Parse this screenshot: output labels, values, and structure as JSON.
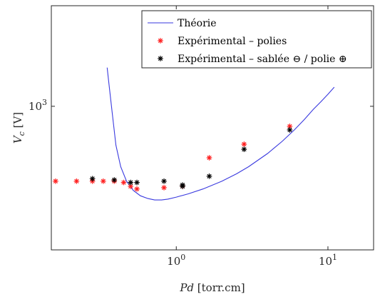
{
  "chart_data": {
    "type": "scatter",
    "xlabel_var": "Pd",
    "xlabel_unit": "[torr.cm]",
    "ylabel_var": "V",
    "ylabel_sub": "c",
    "ylabel_unit": "[V]",
    "xscale": "log",
    "yscale": "log",
    "xlim": [
      0.15,
      20
    ],
    "ylim": [
      400,
      1900
    ],
    "xticks": [
      {
        "value": 1,
        "label": "10",
        "exp": "0"
      },
      {
        "value": 10,
        "label": "10",
        "exp": "1"
      }
    ],
    "yticks": [
      {
        "value": 1000,
        "label": "10",
        "exp": "3"
      }
    ],
    "grid": false,
    "legend_position": "top-right",
    "series": [
      {
        "name": "Théorie",
        "kind": "line",
        "color": "#3a3adf",
        "x": [
          0.35,
          0.36,
          0.38,
          0.4,
          0.43,
          0.47,
          0.52,
          0.58,
          0.65,
          0.72,
          0.8,
          0.88,
          1.0,
          1.2,
          1.5,
          2.0,
          2.5,
          3.0,
          4.0,
          5.0,
          6.0,
          7.0,
          8.0,
          9.0,
          10.0,
          11.0
        ],
        "y": [
          1280,
          1150,
          940,
          780,
          680,
          620,
          585,
          565,
          555,
          550,
          550,
          553,
          560,
          572,
          590,
          620,
          650,
          680,
          740,
          800,
          860,
          920,
          980,
          1030,
          1080,
          1130
        ]
      },
      {
        "name": "Expérimental – polies",
        "kind": "scatter",
        "marker": "*",
        "color": "#ff2020",
        "x": [
          0.16,
          0.22,
          0.28,
          0.33,
          0.39,
          0.45,
          0.5,
          0.55,
          0.83,
          1.1,
          1.65,
          2.8,
          5.6
        ],
        "y": [
          620,
          620,
          620,
          620,
          620,
          615,
          600,
          590,
          595,
          600,
          720,
          785,
          880
        ]
      },
      {
        "name": "Expérimental – sablée ⊖ / polie ⊕",
        "kind": "scatter",
        "marker": "*",
        "color": "#000000",
        "x": [
          0.28,
          0.39,
          0.5,
          0.55,
          0.83,
          1.1,
          1.1,
          1.65,
          2.8,
          5.6
        ],
        "y": [
          630,
          625,
          615,
          615,
          620,
          605,
          600,
          640,
          760,
          860
        ]
      }
    ]
  }
}
